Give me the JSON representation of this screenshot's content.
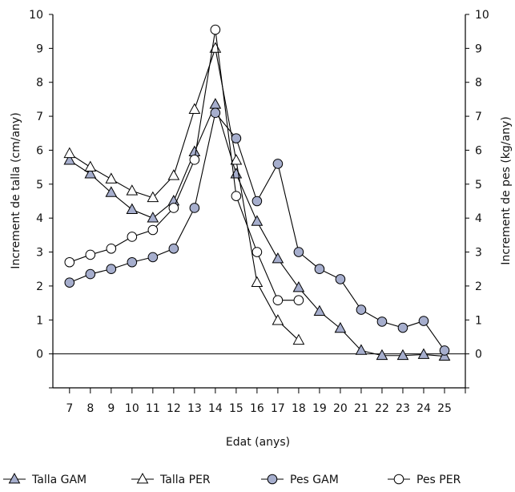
{
  "chart_data": {
    "type": "line",
    "xlabel": "Edat (anys)",
    "ylabel_left": "Increment de talla (cm/any)",
    "ylabel_right": "Increment de pes (kg/any)",
    "x_ticks": [
      7,
      8,
      9,
      10,
      11,
      12,
      13,
      14,
      15,
      16,
      17,
      18,
      19,
      20,
      21,
      22,
      23,
      24,
      25
    ],
    "xlim": [
      6.2,
      26.0
    ],
    "y_ticks": [
      0,
      1,
      2,
      3,
      4,
      5,
      6,
      7,
      8,
      9,
      10
    ],
    "ylim": [
      -1,
      10
    ],
    "grid": false,
    "zero_line": true,
    "legend_position": "bottom",
    "series": [
      {
        "name": "Talla GAM",
        "marker": "triangle",
        "fill": "#a6aecd",
        "x": [
          7,
          8,
          9,
          10,
          11,
          12,
          13,
          14,
          15,
          16,
          17,
          18,
          19,
          20,
          21,
          22,
          23,
          24,
          25
        ],
        "y": [
          5.7,
          5.3,
          4.75,
          4.25,
          4.0,
          4.5,
          5.95,
          7.35,
          5.3,
          3.9,
          2.8,
          1.95,
          1.25,
          0.75,
          0.1,
          -0.05,
          -0.05,
          -0.02,
          -0.07
        ]
      },
      {
        "name": "Talla PER",
        "marker": "triangle",
        "fill": "#ffffff",
        "x": [
          7,
          8,
          9,
          10,
          11,
          12,
          13,
          14,
          15,
          16,
          17,
          18
        ],
        "y": [
          5.9,
          5.5,
          5.15,
          4.8,
          4.6,
          5.25,
          7.2,
          9.0,
          5.7,
          2.1,
          0.98,
          0.4
        ]
      },
      {
        "name": "Pes GAM",
        "marker": "circle",
        "fill": "#a6aecd",
        "x": [
          7,
          8,
          9,
          10,
          11,
          12,
          13,
          14,
          15,
          16,
          17,
          18,
          19,
          20,
          21,
          22,
          23,
          24,
          25
        ],
        "y": [
          2.1,
          2.35,
          2.5,
          2.7,
          2.85,
          3.1,
          4.3,
          7.1,
          6.35,
          4.5,
          5.6,
          3.0,
          2.5,
          2.2,
          1.3,
          0.95,
          0.77,
          0.97,
          0.1
        ]
      },
      {
        "name": "Pes PER",
        "marker": "circle",
        "fill": "#ffffff",
        "x": [
          7,
          8,
          9,
          10,
          11,
          12,
          13,
          14,
          15,
          16,
          17,
          18
        ],
        "y": [
          2.7,
          2.92,
          3.1,
          3.45,
          3.65,
          4.3,
          5.72,
          9.55,
          4.65,
          3.0,
          1.58,
          1.58
        ]
      }
    ]
  }
}
